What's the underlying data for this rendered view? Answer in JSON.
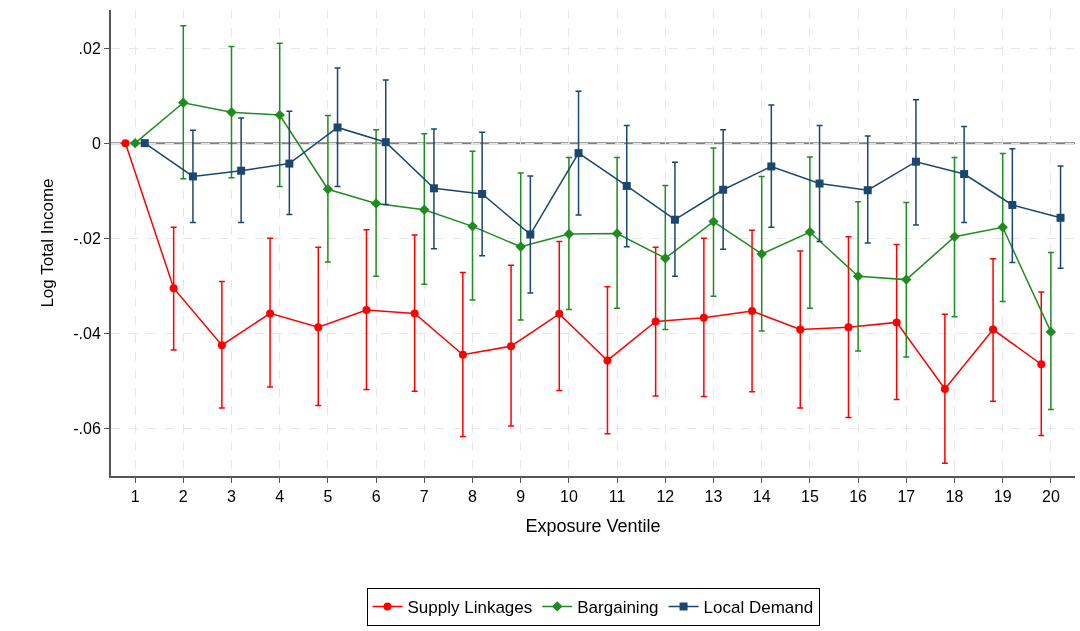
{
  "chart_data": {
    "type": "line",
    "xlabel": "Exposure Ventile",
    "ylabel": "Log Total Income",
    "xlim": [
      0.5,
      20.5
    ],
    "xticks": [
      1,
      2,
      3,
      4,
      5,
      6,
      7,
      8,
      9,
      10,
      11,
      12,
      13,
      14,
      15,
      16,
      17,
      18,
      19,
      20
    ],
    "ylim": [
      -0.07,
      0.028
    ],
    "yticks": [
      {
        "value": 0.02,
        "label": ".02"
      },
      0,
      {
        "value": -0.02,
        "label": "-.02"
      },
      {
        "value": -0.04,
        "label": "-.04"
      },
      {
        "value": -0.06,
        "label": "-.06"
      }
    ],
    "grid": true,
    "legend": "bottom",
    "ref_lines": [
      {
        "axis": "y",
        "value": 0,
        "color": "#808080"
      }
    ],
    "series": [
      {
        "name": "Supply Linkages",
        "color": "#ff0000",
        "marker": "circle",
        "x": [
          0.8,
          1.8,
          2.8,
          3.8,
          4.8,
          5.8,
          6.8,
          7.8,
          8.8,
          9.8,
          10.8,
          11.8,
          12.8,
          13.8,
          14.8,
          15.8,
          16.8,
          17.8,
          18.8,
          19.8
        ],
        "values": [
          0,
          -0.0305,
          -0.0425,
          -0.0358,
          -0.0387,
          -0.0351,
          -0.0358,
          -0.0445,
          -0.0427,
          -0.0359,
          -0.0457,
          -0.0375,
          -0.0367,
          -0.0353,
          -0.0392,
          -0.0387,
          -0.0377,
          -0.0517,
          -0.0392,
          -0.0465
        ],
        "errors": [
          null,
          [
            -0.0435,
            -0.0177
          ],
          [
            -0.0557,
            -0.0291
          ],
          [
            -0.0513,
            -0.02
          ],
          [
            -0.0552,
            -0.0219
          ],
          [
            -0.0518,
            -0.0182
          ],
          [
            -0.0522,
            -0.0193
          ],
          [
            -0.0617,
            -0.0272
          ],
          [
            -0.0595,
            -0.0257
          ],
          [
            -0.052,
            -0.0207
          ],
          [
            -0.0611,
            -0.0302
          ],
          [
            -0.0532,
            -0.0219
          ],
          [
            -0.0533,
            -0.02
          ],
          [
            -0.0523,
            -0.0183
          ],
          [
            -0.0557,
            -0.0227
          ],
          [
            -0.0577,
            -0.0197
          ],
          [
            -0.0539,
            -0.0213
          ],
          [
            -0.0673,
            -0.036
          ],
          [
            -0.0543,
            -0.0243
          ],
          [
            -0.0615,
            -0.0313
          ]
        ]
      },
      {
        "name": "Bargaining",
        "color": "#1f8c1f",
        "marker": "diamond",
        "x": [
          1,
          2,
          3,
          4,
          5,
          6,
          7,
          8,
          9,
          10,
          11,
          12,
          13,
          14,
          15,
          16,
          17,
          18,
          19,
          20
        ],
        "values": [
          0,
          0.0085,
          0.0065,
          0.0059,
          -0.0097,
          -0.0127,
          -0.014,
          -0.0175,
          -0.0218,
          -0.0191,
          -0.019,
          -0.0242,
          -0.0165,
          -0.0233,
          -0.0187,
          -0.028,
          -0.0287,
          -0.0197,
          -0.0177,
          -0.0397
        ],
        "errors": [
          null,
          [
            -0.0075,
            0.0247
          ],
          [
            -0.0073,
            0.0203
          ],
          [
            -0.0091,
            0.021
          ],
          [
            -0.025,
            0.0058
          ],
          [
            -0.028,
            0.0028
          ],
          [
            -0.0297,
            0.002
          ],
          [
            -0.033,
            -0.0017
          ],
          [
            -0.0372,
            -0.0063
          ],
          [
            -0.035,
            -0.003
          ],
          [
            -0.0347,
            -0.003
          ],
          [
            -0.0392,
            -0.0089
          ],
          [
            -0.0322,
            -0.001
          ],
          [
            -0.0395,
            -0.007
          ],
          [
            -0.0347,
            -0.0029
          ],
          [
            -0.0437,
            -0.0123
          ],
          [
            -0.045,
            -0.0125
          ],
          [
            -0.0365,
            -0.003
          ],
          [
            -0.0333,
            -0.0022
          ],
          [
            -0.056,
            -0.023
          ]
        ]
      },
      {
        "name": "Local Demand",
        "color": "#1a476f",
        "marker": "square",
        "x": [
          1.2,
          2.2,
          3.2,
          4.2,
          5.2,
          6.2,
          7.2,
          8.2,
          9.2,
          10.2,
          11.2,
          12.2,
          13.2,
          14.2,
          15.2,
          16.2,
          17.2,
          18.2,
          19.2,
          20.2
        ],
        "values": [
          0,
          -0.007,
          -0.0058,
          -0.0043,
          0.0033,
          0.0002,
          -0.0095,
          -0.0107,
          -0.0192,
          -0.0021,
          -0.009,
          -0.0161,
          -0.0098,
          -0.0049,
          -0.0085,
          -0.0099,
          -0.0039,
          -0.0065,
          -0.013,
          -0.0157
        ],
        "errors": [
          null,
          [
            -0.0167,
            0.0027
          ],
          [
            -0.0167,
            0.0053
          ],
          [
            -0.015,
            0.0067
          ],
          [
            -0.0091,
            0.0158
          ],
          [
            -0.0129,
            0.0133
          ],
          [
            -0.0222,
            0.003
          ],
          [
            -0.0237,
            0.0023
          ],
          [
            -0.0315,
            -0.0069
          ],
          [
            -0.0151,
            0.0109
          ],
          [
            -0.0218,
            0.0037
          ],
          [
            -0.028,
            -0.004
          ],
          [
            -0.0223,
            0.0028
          ],
          [
            -0.0177,
            0.008
          ],
          [
            -0.0207,
            0.0037
          ],
          [
            -0.021,
            0.0015
          ],
          [
            -0.0172,
            0.0091
          ],
          [
            -0.0167,
            0.0035
          ],
          [
            -0.0251,
            -0.0012
          ],
          [
            -0.0263,
            -0.0048
          ]
        ]
      }
    ]
  }
}
